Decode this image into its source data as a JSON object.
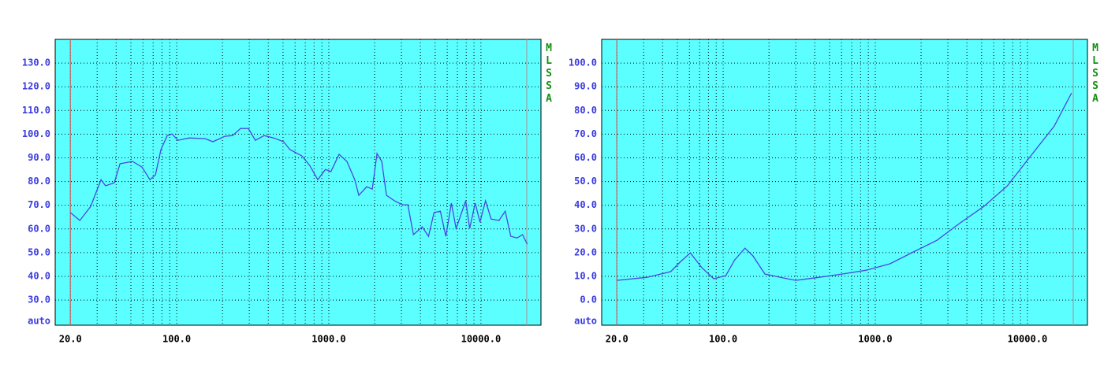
{
  "chart_data": [
    {
      "type": "line",
      "x_scale": "log",
      "side_label": "MLSSA",
      "xlim": [
        15.9,
        24800
      ],
      "ylim": [
        19.4,
        140
      ],
      "xticks": [
        {
          "value": 20,
          "label": "20.0"
        },
        {
          "value": 100,
          "label": "100.0"
        },
        {
          "value": 1000,
          "label": "1000.0"
        },
        {
          "value": 10000,
          "label": "10000.0"
        }
      ],
      "yticks": [
        {
          "value": 21,
          "label": "auto"
        },
        {
          "value": 30,
          "label": "30.0"
        },
        {
          "value": 40,
          "label": "40.0"
        },
        {
          "value": 50,
          "label": "50.0"
        },
        {
          "value": 60,
          "label": "60.0"
        },
        {
          "value": 70,
          "label": "70.0"
        },
        {
          "value": 80,
          "label": "80.0"
        },
        {
          "value": 90,
          "label": "90.0"
        },
        {
          "value": 100,
          "label": "100.0"
        },
        {
          "value": 110,
          "label": "110.0"
        },
        {
          "value": 120,
          "label": "120.0"
        },
        {
          "value": 130,
          "label": "130.0"
        }
      ],
      "x_grid": [
        30,
        40,
        50,
        60,
        70,
        80,
        90,
        200,
        300,
        400,
        500,
        600,
        700,
        800,
        900,
        2000,
        3000,
        4000,
        5000,
        6000,
        7000,
        8000,
        9000
      ],
      "marker_lines": [
        {
          "value": 20,
          "color": "#d06060"
        },
        {
          "value": 20000,
          "color": "#a0a0a0"
        }
      ],
      "series": [
        {
          "color": "#4848e0",
          "x": [
            20,
            23.1,
            27.2,
            31.8,
            34.1,
            38.9,
            42.4,
            51.3,
            59.2,
            66.7,
            72.5,
            78.8,
            86.7,
            93.1,
            102,
            121,
            154,
            173,
            207,
            233,
            263,
            296,
            329,
            376,
            433,
            505,
            555,
            666,
            748,
            846,
            950,
            1032,
            1168,
            1315,
            1482,
            1574,
            1776,
            1930,
            2074,
            2228,
            2394,
            2699,
            3043,
            3309,
            3600,
            4108,
            4520,
            4915,
            5408,
            5880,
            6395,
            6870,
            7940,
            8430,
            9170,
            9860,
            10720,
            11660,
            13140,
            14450,
            15710,
            17270,
            18770,
            20160
          ],
          "values": [
            66.9,
            63.6,
            69.5,
            80.8,
            78.2,
            79.5,
            87.5,
            88.5,
            86.1,
            80.8,
            82.8,
            93.5,
            99.4,
            100.1,
            97.4,
            98.4,
            98.1,
            96.8,
            99.1,
            99.4,
            102.4,
            102.4,
            97.4,
            99.4,
            98.4,
            96.8,
            93.5,
            90.8,
            86.8,
            80.8,
            85.1,
            84.2,
            91.5,
            88.5,
            80.8,
            74.2,
            77.8,
            76.8,
            91.8,
            88.5,
            74.2,
            71.9,
            70.2,
            70.2,
            57.6,
            60.9,
            56.9,
            66.9,
            67.5,
            56.9,
            70.9,
            60.2,
            71.9,
            60.2,
            70.9,
            62.9,
            71.9,
            64.2,
            63.6,
            67.5,
            56.9,
            56.2,
            57.6,
            53.6
          ]
        }
      ]
    },
    {
      "type": "line",
      "x_scale": "log",
      "side_label": "MLSSA",
      "xlim": [
        15.9,
        24800
      ],
      "ylim": [
        -10.6,
        110
      ],
      "xticks": [
        {
          "value": 20,
          "label": "20.0"
        },
        {
          "value": 100,
          "label": "100.0"
        },
        {
          "value": 1000,
          "label": "1000.0"
        },
        {
          "value": 10000,
          "label": "10000.0"
        }
      ],
      "yticks": [
        {
          "value": -9,
          "label": "auto"
        },
        {
          "value": 0,
          "label": "0.0"
        },
        {
          "value": 10,
          "label": "10.0"
        },
        {
          "value": 20,
          "label": "20.0"
        },
        {
          "value": 30,
          "label": "30.0"
        },
        {
          "value": 40,
          "label": "40.0"
        },
        {
          "value": 50,
          "label": "50.0"
        },
        {
          "value": 60,
          "label": "60.0"
        },
        {
          "value": 70,
          "label": "70.0"
        },
        {
          "value": 80,
          "label": "80.0"
        },
        {
          "value": 90,
          "label": "90.0"
        },
        {
          "value": 100,
          "label": "100.0"
        }
      ],
      "x_grid": [
        30,
        40,
        50,
        60,
        70,
        80,
        90,
        200,
        300,
        400,
        500,
        600,
        700,
        800,
        900,
        2000,
        3000,
        4000,
        5000,
        6000,
        7000,
        8000,
        9000
      ],
      "marker_lines": [
        {
          "value": 20,
          "color": "#d06060"
        },
        {
          "value": 20000,
          "color": "#a0a0a0"
        }
      ],
      "series": [
        {
          "color": "#4848e0",
          "x": [
            20,
            31.6,
            45.2,
            52.1,
            60.8,
            72.6,
            86.7,
            104,
            119,
            139,
            157,
            188,
            238,
            300,
            428,
            610,
            870,
            1250,
            1780,
            2540,
            3620,
            5170,
            7380,
            10500,
            15000,
            19500
          ],
          "values": [
            8.3,
            9.6,
            12.0,
            16.0,
            19.9,
            13.6,
            9.0,
            10.3,
            16.9,
            21.9,
            18.6,
            11.0,
            9.6,
            8.3,
            9.6,
            11.0,
            12.6,
            15.3,
            20.3,
            25.2,
            32.6,
            39.5,
            48.2,
            60.8,
            73.4,
            87.4
          ]
        }
      ]
    }
  ]
}
